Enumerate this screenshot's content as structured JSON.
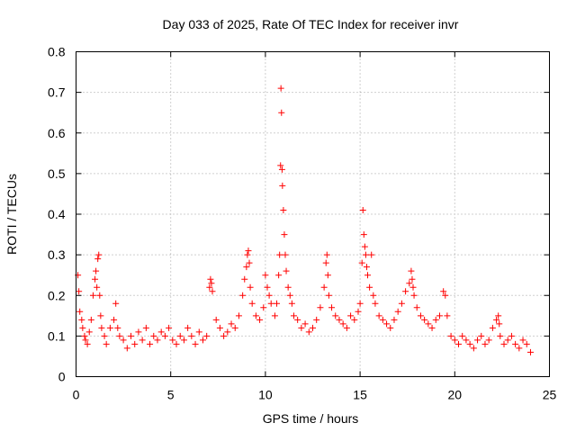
{
  "chart_data": {
    "type": "scatter",
    "title": "Day 033 of 2025, Rate Of TEC Index for receiver invr",
    "xlabel": "GPS time / hours",
    "ylabel": "ROTI / TECUs",
    "xlim": [
      0,
      25
    ],
    "ylim": [
      0,
      0.8
    ],
    "x_ticks": [
      0,
      5,
      10,
      15,
      20,
      25
    ],
    "x_tick_labels": [
      "0",
      "5",
      "10",
      "15",
      "20",
      "25"
    ],
    "y_ticks": [
      0,
      0.1,
      0.2,
      0.3,
      0.4,
      0.5,
      0.6,
      0.7,
      0.8
    ],
    "y_tick_labels": [
      "0",
      "0.1",
      "0.2",
      "0.3",
      "0.4",
      "0.5",
      "0.6",
      "0.7",
      "0.8"
    ],
    "grid": true,
    "marker": "plus",
    "color": "#ff0000",
    "series": [
      {
        "x": [
          0.1,
          0.15,
          0.2,
          0.3,
          0.35,
          0.45,
          0.5,
          0.6,
          0.7,
          0.8,
          0.9,
          1.0,
          1.05,
          1.1,
          1.15,
          1.2,
          1.25,
          1.3,
          1.35,
          1.5,
          1.6,
          1.8,
          2.0,
          2.1,
          2.2,
          2.3,
          2.5,
          2.7,
          2.9,
          3.1,
          3.3,
          3.5,
          3.7,
          3.9,
          4.1,
          4.3,
          4.5,
          4.7,
          4.9,
          5.1,
          5.3,
          5.5,
          5.7,
          5.9,
          6.1,
          6.3,
          6.5,
          6.7,
          6.9,
          7.05,
          7.1,
          7.15,
          7.2,
          7.4,
          7.6,
          7.8,
          8.0,
          8.2,
          8.4,
          8.6,
          8.8,
          8.9,
          9.0,
          9.05,
          9.1,
          9.15,
          9.2,
          9.3,
          9.5,
          9.7,
          9.9,
          10.0,
          10.1,
          10.2,
          10.3,
          10.5,
          10.6,
          10.7,
          10.75,
          10.8,
          10.82,
          10.85,
          10.88,
          10.9,
          10.95,
          11.0,
          11.05,
          11.1,
          11.2,
          11.3,
          11.4,
          11.5,
          11.7,
          11.9,
          12.1,
          12.3,
          12.5,
          12.7,
          12.9,
          13.1,
          13.2,
          13.25,
          13.3,
          13.35,
          13.5,
          13.7,
          13.9,
          14.1,
          14.3,
          14.5,
          14.7,
          14.9,
          15.0,
          15.1,
          15.15,
          15.2,
          15.25,
          15.3,
          15.35,
          15.4,
          15.5,
          15.6,
          15.7,
          15.8,
          16.0,
          16.2,
          16.4,
          16.6,
          16.8,
          17.0,
          17.2,
          17.4,
          17.6,
          17.7,
          17.75,
          17.8,
          17.85,
          18.0,
          18.2,
          18.4,
          18.6,
          18.8,
          19.0,
          19.2,
          19.4,
          19.5,
          19.6,
          19.8,
          20.0,
          20.2,
          20.4,
          20.6,
          20.8,
          21.0,
          21.2,
          21.4,
          21.6,
          21.8,
          22.0,
          22.2,
          22.3,
          22.35,
          22.4,
          22.6,
          22.8,
          23.0,
          23.2,
          23.4,
          23.6,
          23.8,
          24.0
        ],
        "y": [
          0.25,
          0.21,
          0.16,
          0.14,
          0.12,
          0.1,
          0.09,
          0.08,
          0.11,
          0.14,
          0.2,
          0.24,
          0.26,
          0.22,
          0.29,
          0.3,
          0.2,
          0.15,
          0.12,
          0.1,
          0.08,
          0.12,
          0.14,
          0.18,
          0.12,
          0.1,
          0.09,
          0.07,
          0.1,
          0.08,
          0.11,
          0.09,
          0.12,
          0.08,
          0.1,
          0.09,
          0.11,
          0.1,
          0.12,
          0.09,
          0.08,
          0.1,
          0.09,
          0.12,
          0.1,
          0.08,
          0.11,
          0.09,
          0.1,
          0.22,
          0.24,
          0.23,
          0.21,
          0.14,
          0.12,
          0.1,
          0.11,
          0.13,
          0.12,
          0.15,
          0.2,
          0.24,
          0.27,
          0.3,
          0.31,
          0.28,
          0.22,
          0.18,
          0.15,
          0.14,
          0.17,
          0.25,
          0.22,
          0.2,
          0.18,
          0.15,
          0.18,
          0.25,
          0.3,
          0.52,
          0.71,
          0.65,
          0.51,
          0.47,
          0.41,
          0.35,
          0.3,
          0.26,
          0.22,
          0.2,
          0.18,
          0.15,
          0.14,
          0.12,
          0.13,
          0.11,
          0.12,
          0.14,
          0.17,
          0.22,
          0.28,
          0.3,
          0.25,
          0.2,
          0.17,
          0.15,
          0.14,
          0.13,
          0.12,
          0.15,
          0.14,
          0.16,
          0.18,
          0.28,
          0.41,
          0.35,
          0.32,
          0.3,
          0.27,
          0.25,
          0.22,
          0.3,
          0.2,
          0.18,
          0.15,
          0.14,
          0.13,
          0.12,
          0.14,
          0.16,
          0.18,
          0.21,
          0.23,
          0.26,
          0.24,
          0.22,
          0.2,
          0.17,
          0.15,
          0.14,
          0.13,
          0.12,
          0.14,
          0.15,
          0.21,
          0.2,
          0.15,
          0.1,
          0.09,
          0.08,
          0.1,
          0.09,
          0.08,
          0.07,
          0.09,
          0.1,
          0.08,
          0.09,
          0.12,
          0.14,
          0.15,
          0.13,
          0.1,
          0.08,
          0.09,
          0.1,
          0.08,
          0.07,
          0.09,
          0.08,
          0.06
        ]
      }
    ]
  }
}
